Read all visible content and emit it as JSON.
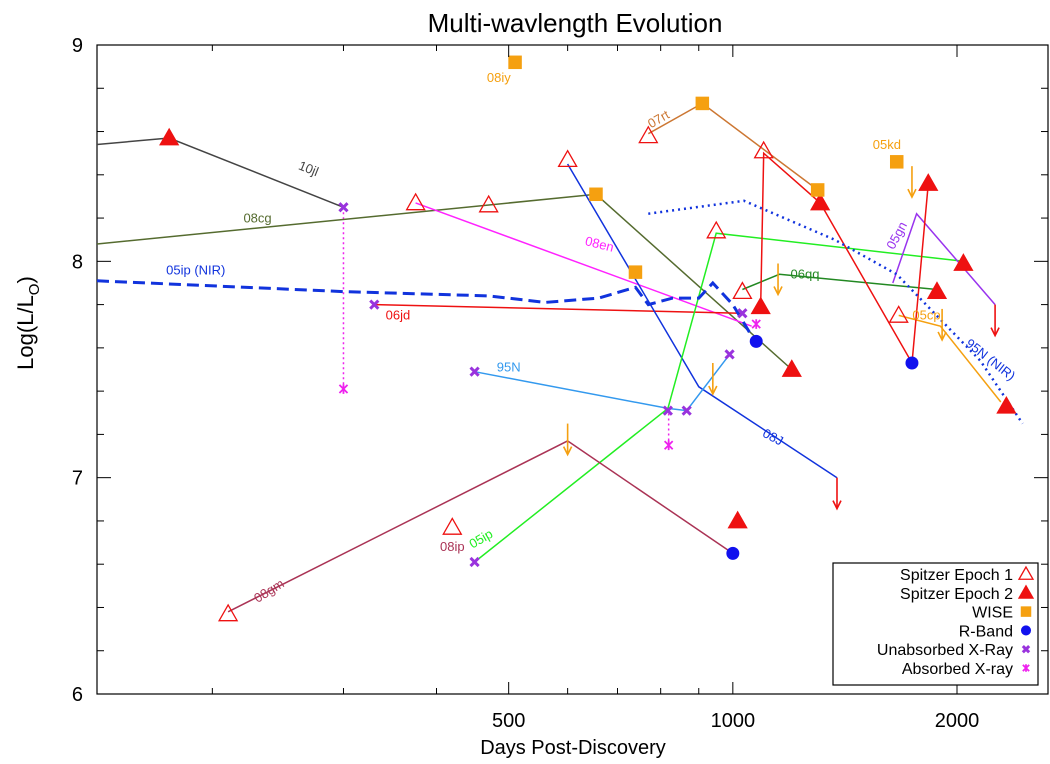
{
  "chart_data": {
    "type": "line",
    "title": "Multi-wavlength Evolution",
    "xlabel": "Days Post-Discovery",
    "ylabel_main": "Log(L/L",
    "ylabel_sub": "O",
    "ylabel_close": ")",
    "xscale": "log",
    "xlim": [
      140,
      2650
    ],
    "ylim": [
      6,
      9
    ],
    "xticks": [
      {
        "value": 500,
        "label": "500"
      },
      {
        "value": 1000,
        "label": "1000"
      },
      {
        "value": 2000,
        "label": "2000"
      }
    ],
    "yticks": [
      {
        "value": 6,
        "label": "6"
      },
      {
        "value": 7,
        "label": "7"
      },
      {
        "value": 8,
        "label": "8"
      },
      {
        "value": 9,
        "label": "9"
      }
    ],
    "legend_position": "bottom-right",
    "legend": [
      {
        "label": "Spitzer Epoch 1",
        "marker": "triangle-open",
        "color": "#ee1111"
      },
      {
        "label": "Spitzer Epoch 2",
        "marker": "triangle-filled",
        "color": "#ee1111"
      },
      {
        "label": "WISE",
        "marker": "square",
        "color": "#f5a010"
      },
      {
        "label": "R-Band",
        "marker": "circle",
        "color": "#1111ee"
      },
      {
        "label": "Unabsorbed X-Ray",
        "marker": "x-cross",
        "color": "#9933dd"
      },
      {
        "label": "Absorbed X-ray",
        "marker": "asterisk",
        "color": "#ee22ee"
      }
    ],
    "series": [
      {
        "name": "10jl",
        "color": "#444444",
        "dash": "solid",
        "x": [
          140,
          175,
          300
        ],
        "y": [
          8.54,
          8.57,
          8.25
        ]
      },
      {
        "name": "08cg",
        "color": "#556b2f",
        "dash": "solid",
        "x": [
          140,
          655,
          1200
        ],
        "y": [
          8.08,
          8.31,
          7.5
        ]
      },
      {
        "name": "08en",
        "color": "#ff22ff",
        "dash": "solid",
        "x": [
          375,
          1060
        ],
        "y": [
          8.27,
          7.7
        ]
      },
      {
        "name": "06jd",
        "color": "#ee1111",
        "dash": "solid",
        "x": [
          330,
          1025
        ],
        "y": [
          7.8,
          7.76
        ]
      },
      {
        "name": "08J",
        "color": "#1133dd",
        "dash": "solid",
        "x": [
          600,
          900,
          1380
        ],
        "y": [
          8.45,
          7.42,
          7.0
        ]
      },
      {
        "name": "95N",
        "color": "#3399ee",
        "dash": "solid",
        "x": [
          450,
          818,
          867,
          990
        ],
        "y": [
          7.49,
          7.32,
          7.31,
          7.57
        ]
      },
      {
        "name": "05ip",
        "color": "#22ee22",
        "dash": "solid",
        "x": [
          450,
          818,
          950,
          2040
        ],
        "y": [
          6.61,
          7.32,
          8.13,
          8.0
        ]
      },
      {
        "name": "08gm",
        "color": "#aa3355",
        "dash": "solid",
        "x": [
          210,
          600,
          1000
        ],
        "y": [
          6.38,
          7.17,
          6.65
        ]
      },
      {
        "name": "07rt",
        "color": "#cc7733",
        "dash": "solid",
        "x": [
          770,
          910,
          1300
        ],
        "y": [
          8.59,
          8.73,
          8.33
        ]
      },
      {
        "name": "06qq",
        "color": "#228822",
        "dash": "solid",
        "x": [
          1030,
          1155,
          1880
        ],
        "y": [
          7.87,
          7.94,
          7.87
        ]
      },
      {
        "name": "05gn",
        "color": "#9933ee",
        "dash": "solid",
        "x": [
          1640,
          1765,
          2250
        ],
        "y": [
          7.9,
          8.22,
          7.8
        ]
      },
      {
        "name": "05cp",
        "color": "#f5a010",
        "dash": "solid",
        "x": [
          1670,
          1900,
          2290
        ],
        "y": [
          7.75,
          7.7,
          7.35
        ]
      },
      {
        "name": "05kd",
        "color": "#ee1111",
        "dash": "solid",
        "x": [
          1090,
          1100,
          1310,
          1740,
          1830
        ],
        "y": [
          7.8,
          8.5,
          8.27,
          7.53,
          8.36
        ]
      },
      {
        "name": "95N (NIR)",
        "color": "#1133dd",
        "dash": "dotted",
        "x": [
          770,
          1035,
          1370,
          1660,
          2150,
          2450
        ],
        "y": [
          8.22,
          8.28,
          8.1,
          7.94,
          7.54,
          7.25
        ]
      },
      {
        "name": "05ip (NIR)",
        "color": "#1133dd",
        "dash": "dashed",
        "x": [
          140,
          300,
          470,
          560,
          660,
          740,
          770,
          830,
          900,
          940,
          1000,
          1075
        ],
        "y": [
          7.91,
          7.86,
          7.84,
          7.81,
          7.83,
          7.88,
          7.8,
          7.83,
          7.83,
          7.9,
          7.8,
          7.62
        ]
      }
    ],
    "series_labels": [
      {
        "text": "10jl",
        "x": 268,
        "y": 8.41,
        "color": "#444444",
        "rotate": 22
      },
      {
        "text": "08cg",
        "x": 230,
        "y": 8.18,
        "color": "#556b2f",
        "rotate": 0
      },
      {
        "text": "08en",
        "x": 660,
        "y": 8.06,
        "color": "#ff22ff",
        "rotate": 14
      },
      {
        "text": "05ip (NIR)",
        "x": 190,
        "y": 7.94,
        "color": "#1133dd",
        "rotate": 0
      },
      {
        "text": "06jd",
        "x": 355,
        "y": 7.73,
        "color": "#ee1111",
        "rotate": 0
      },
      {
        "text": "95N",
        "x": 500,
        "y": 7.49,
        "color": "#3399ee",
        "rotate": 0
      },
      {
        "text": "08J",
        "x": 1125,
        "y": 7.17,
        "color": "#1133dd",
        "rotate": 28
      },
      {
        "text": "08ip",
        "x": 420,
        "y": 6.66,
        "color": "#aa3355",
        "rotate": 0
      },
      {
        "text": "05ip",
        "x": 462,
        "y": 6.7,
        "color": "#22ee22",
        "rotate": -30
      },
      {
        "text": "08gm",
        "x": 240,
        "y": 6.46,
        "color": "#aa3355",
        "rotate": -32
      },
      {
        "text": "08iy",
        "x": 485,
        "y": 8.83,
        "color": "#f5a010",
        "rotate": 0
      },
      {
        "text": "07rt",
        "x": 800,
        "y": 8.64,
        "color": "#cc7733",
        "rotate": -30
      },
      {
        "text": "05kd",
        "x": 1610,
        "y": 8.52,
        "color": "#f5a010",
        "rotate": 0
      },
      {
        "text": "06qq",
        "x": 1250,
        "y": 7.92,
        "color": "#228822",
        "rotate": 0
      },
      {
        "text": "05gn",
        "x": 1680,
        "y": 8.11,
        "color": "#9933ee",
        "rotate": -62
      },
      {
        "text": "05cp",
        "x": 1820,
        "y": 7.73,
        "color": "#f5a010",
        "rotate": 0
      },
      {
        "text": "95N (NIR)",
        "x": 2200,
        "y": 7.53,
        "color": "#1133dd",
        "rotate": 38
      }
    ],
    "points": {
      "spitzer_epoch_1": [
        {
          "x": 210,
          "y": 6.37
        },
        {
          "x": 375,
          "y": 8.27
        },
        {
          "x": 420,
          "y": 6.77
        },
        {
          "x": 470,
          "y": 8.26
        },
        {
          "x": 600,
          "y": 8.47
        },
        {
          "x": 770,
          "y": 8.58
        },
        {
          "x": 950,
          "y": 8.14
        },
        {
          "x": 1030,
          "y": 7.86
        },
        {
          "x": 1100,
          "y": 8.51
        },
        {
          "x": 1670,
          "y": 7.75
        }
      ],
      "spitzer_epoch_2": [
        {
          "x": 175,
          "y": 8.57
        },
        {
          "x": 1015,
          "y": 6.8
        },
        {
          "x": 1090,
          "y": 7.79
        },
        {
          "x": 1200,
          "y": 7.5
        },
        {
          "x": 1310,
          "y": 8.27
        },
        {
          "x": 1830,
          "y": 8.36
        },
        {
          "x": 1880,
          "y": 7.86
        },
        {
          "x": 2040,
          "y": 7.99
        },
        {
          "x": 2330,
          "y": 7.33
        }
      ],
      "wise": [
        {
          "x": 510,
          "y": 8.92
        },
        {
          "x": 655,
          "y": 8.31
        },
        {
          "x": 740,
          "y": 7.95
        },
        {
          "x": 910,
          "y": 8.73
        },
        {
          "x": 1300,
          "y": 8.33
        },
        {
          "x": 1660,
          "y": 8.46
        }
      ],
      "r_band": [
        {
          "x": 1000,
          "y": 6.65
        },
        {
          "x": 1075,
          "y": 7.63
        },
        {
          "x": 1740,
          "y": 7.53
        }
      ],
      "unabsorbed_xray": [
        {
          "x": 300,
          "y": 8.25
        },
        {
          "x": 330,
          "y": 7.8
        },
        {
          "x": 450,
          "y": 7.49
        },
        {
          "x": 450,
          "y": 6.61
        },
        {
          "x": 818,
          "y": 7.31
        },
        {
          "x": 867,
          "y": 7.31
        },
        {
          "x": 990,
          "y": 7.57
        },
        {
          "x": 1030,
          "y": 7.76
        }
      ],
      "absorbed_xray": [
        {
          "x": 300,
          "y": 7.41
        },
        {
          "x": 820,
          "y": 7.15
        },
        {
          "x": 1075,
          "y": 7.71
        }
      ]
    },
    "upper_limits": [
      {
        "x": 600,
        "y": 7.25,
        "color": "#f5a010"
      },
      {
        "x": 940,
        "y": 7.53,
        "color": "#f5a010"
      },
      {
        "x": 1150,
        "y": 7.99,
        "color": "#f5a010"
      },
      {
        "x": 1740,
        "y": 8.44,
        "color": "#f5a010"
      },
      {
        "x": 1910,
        "y": 7.78,
        "color": "#f5a010"
      },
      {
        "x": 1380,
        "y": 7.0,
        "color": "#ee1111"
      },
      {
        "x": 2250,
        "y": 7.8,
        "color": "#ee1111"
      }
    ],
    "connectors": [
      {
        "x": 300,
        "y1": 8.25,
        "y2": 7.41,
        "color": "#ee22ee"
      },
      {
        "x": 820,
        "y1": 7.32,
        "y2": 7.15,
        "color": "#ee22ee"
      }
    ]
  }
}
